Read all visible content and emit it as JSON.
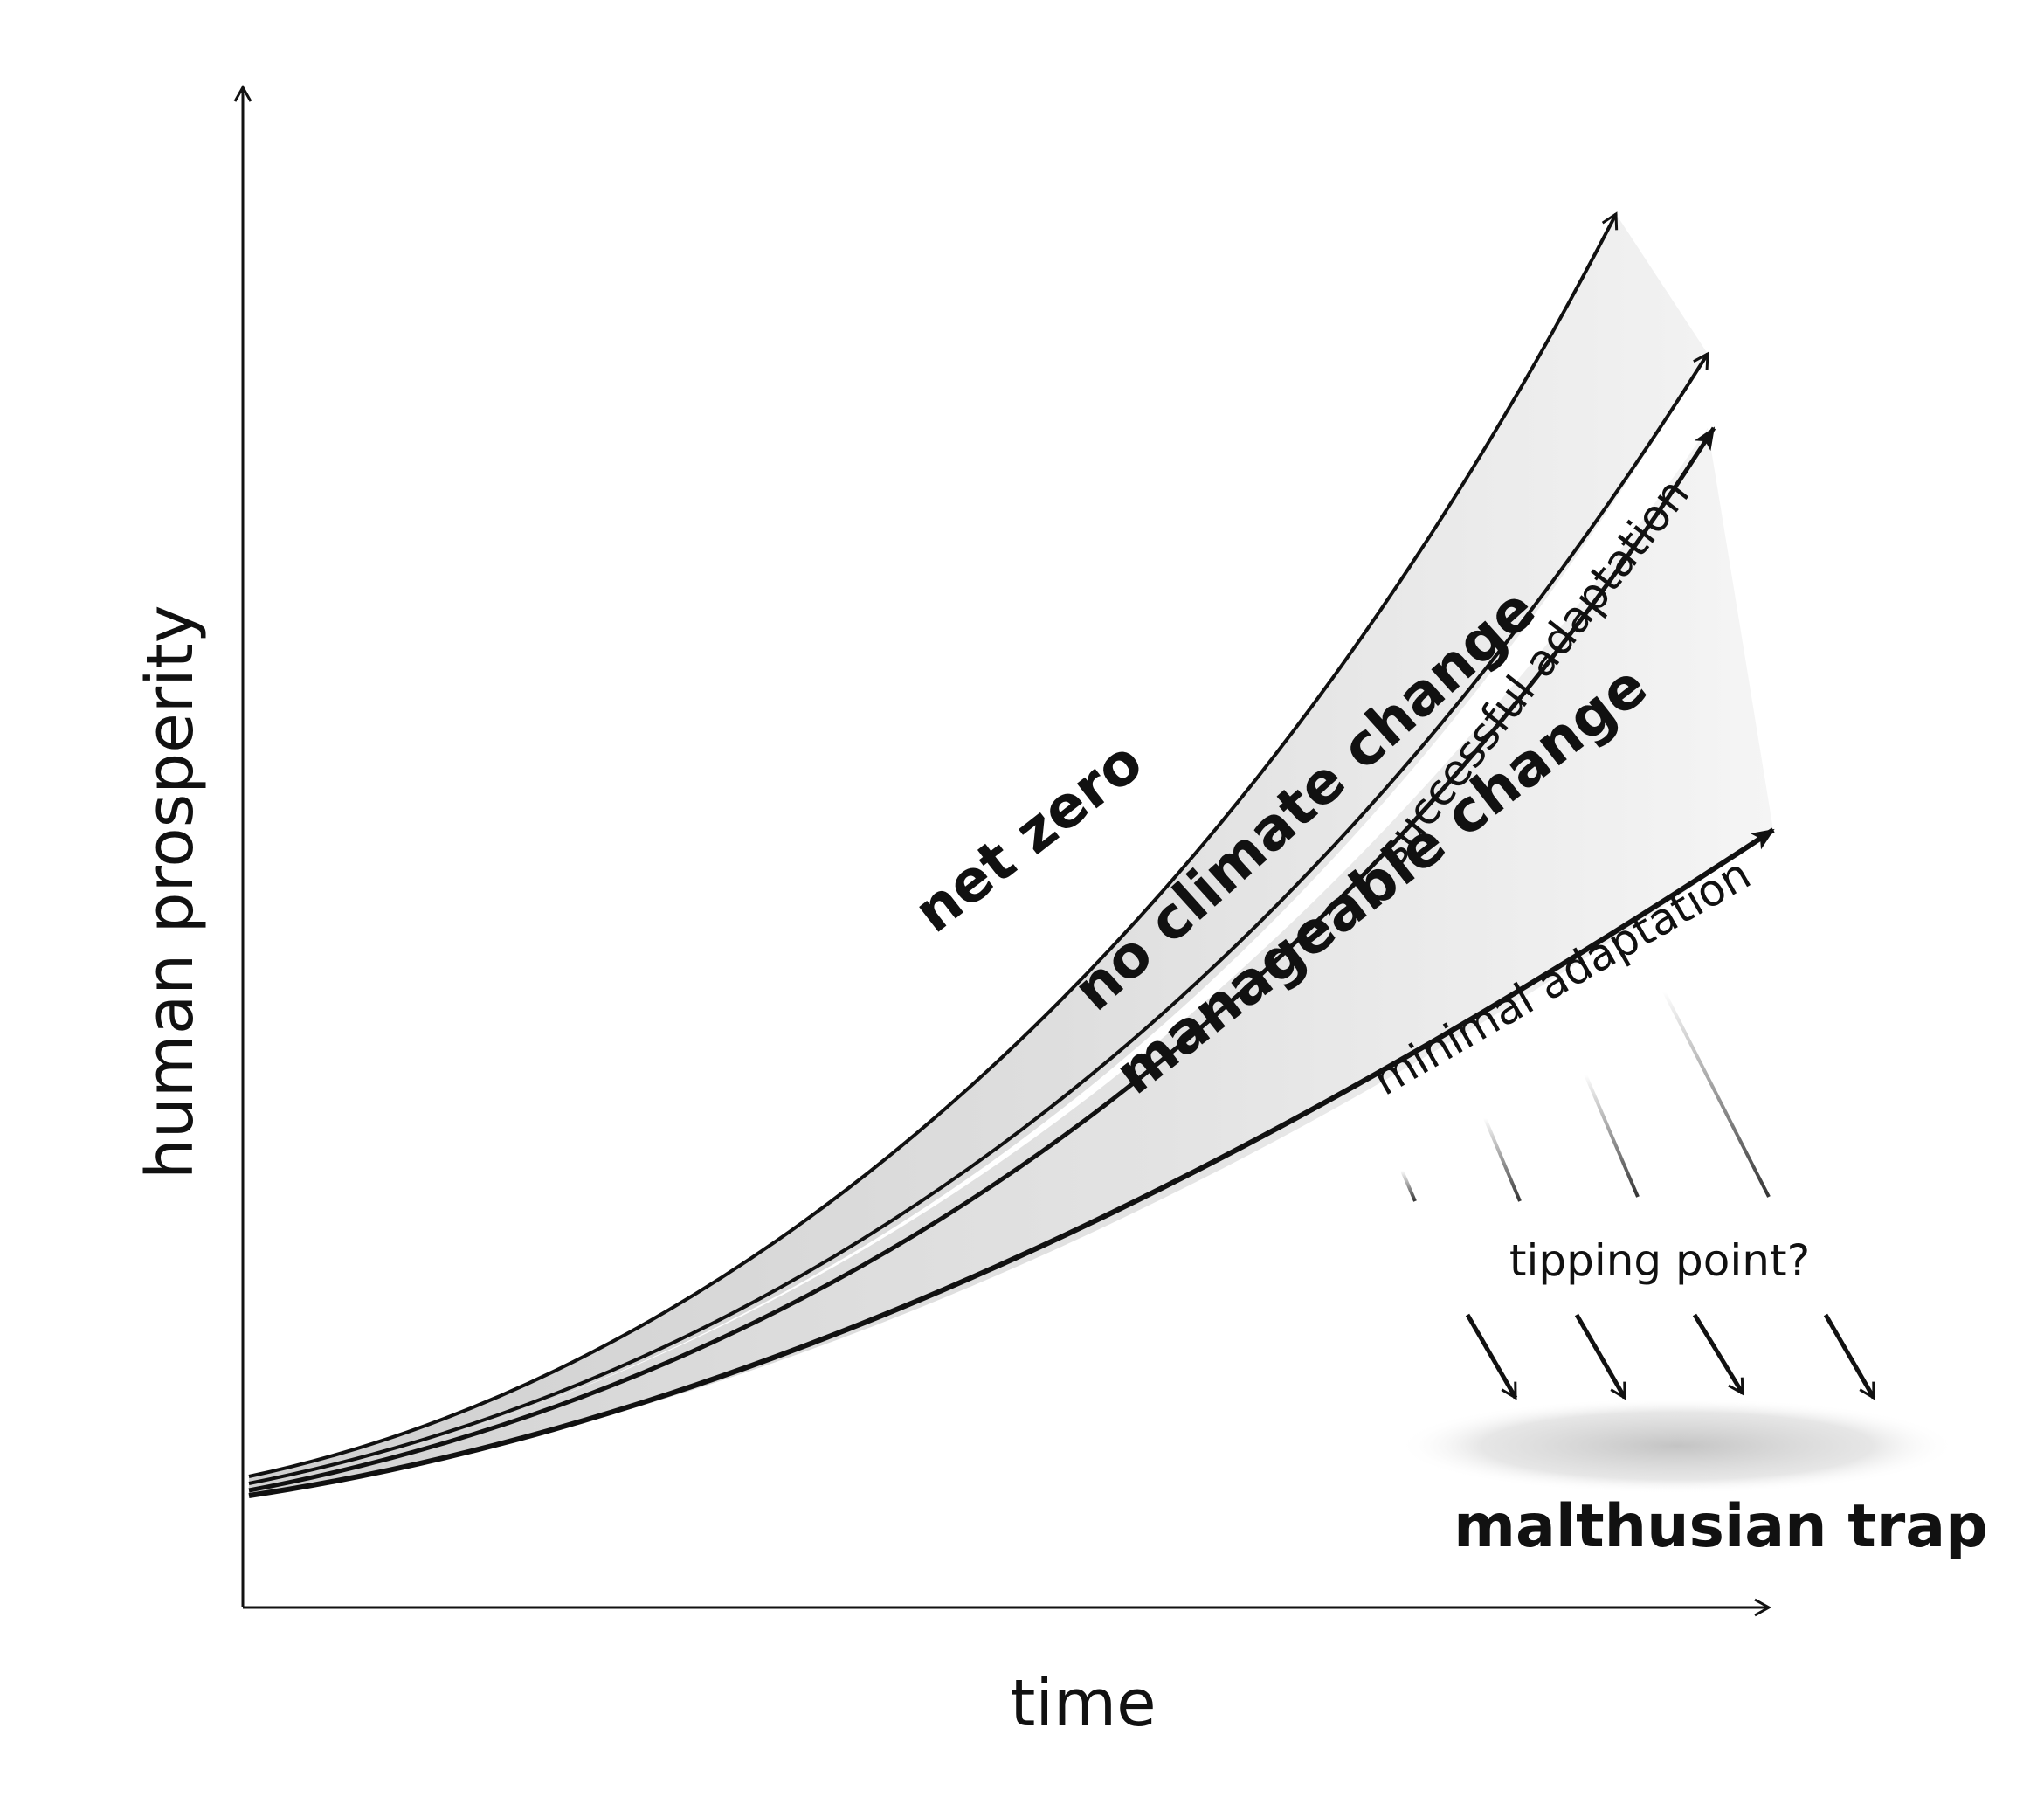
{
  "diagram": {
    "axes": {
      "y_label": "human prosperity",
      "x_label": "time"
    },
    "trajectories": [
      {
        "id": "net-zero",
        "label": "net zero"
      },
      {
        "id": "no-climate-change",
        "label": "no climate change"
      },
      {
        "id": "successful-adaptation",
        "label": "successful adaptation"
      },
      {
        "id": "manageable-change",
        "label": "manageable change"
      },
      {
        "id": "minimal-adaptation",
        "label": "minimal adaptation"
      }
    ],
    "tipping_point_label": "tipping point?",
    "trap_label": "malthusian trap",
    "colors": {
      "ink": "#111111",
      "band_dark": "#c9c9c9",
      "band_light": "#e6e6e6",
      "background": "#ffffff"
    }
  }
}
